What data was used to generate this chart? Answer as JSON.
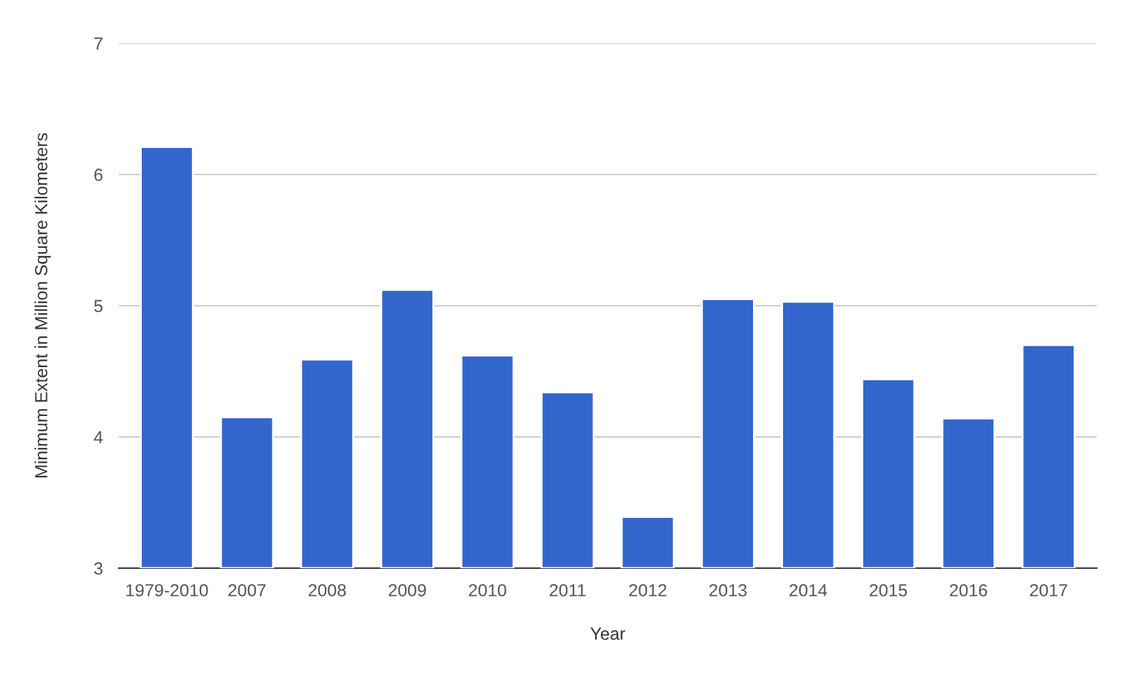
{
  "chart_data": {
    "type": "bar",
    "xlabel": "Year",
    "ylabel": "Minimum Extent in Million Square Kilometers",
    "categories": [
      "1979-2010",
      "2007",
      "2008",
      "2009",
      "2010",
      "2011",
      "2012",
      "2013",
      "2014",
      "2015",
      "2016",
      "2017"
    ],
    "values": [
      6.21,
      4.15,
      4.59,
      5.12,
      4.62,
      4.34,
      3.39,
      5.05,
      5.03,
      4.44,
      4.14,
      4.7
    ],
    "color": "#3366cc",
    "ylim": [
      3,
      7
    ],
    "yticks": [
      3,
      4,
      5,
      6,
      7
    ],
    "grid": "y"
  }
}
